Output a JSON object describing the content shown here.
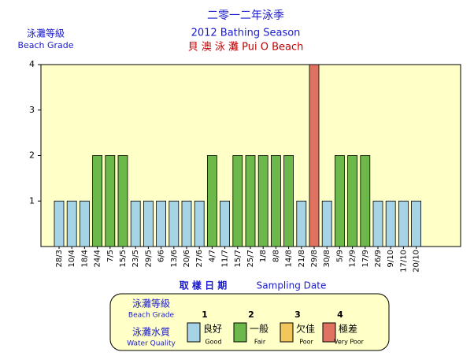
{
  "chart_data": {
    "type": "bar",
    "title": "二零一二年泳季",
    "subtitle": "2012 Bathing Season",
    "location": "貝 澳 泳 灘   Pui O Beach",
    "y_label": [
      "泳灘等級",
      "Beach Grade"
    ],
    "x_label": [
      "取 樣 日 期",
      "Sampling Date"
    ],
    "categories": [
      "28/3",
      "10/4",
      "18/4",
      "24/4",
      "7/5",
      "15/5",
      "23/5",
      "29/5",
      "6/6",
      "13/6",
      "20/6",
      "27/6",
      "4/7",
      "11/7",
      "15/7",
      "25/7",
      "1/8",
      "8/8",
      "14/8",
      "21/8",
      "29/8",
      "30/8",
      "5/9",
      "12/9",
      "17/9",
      "26/9",
      "9/10",
      "17/10",
      "20/10"
    ],
    "values": [
      1,
      1,
      1,
      2,
      2,
      2,
      1,
      1,
      1,
      1,
      1,
      1,
      2,
      1,
      2,
      2,
      2,
      2,
      2,
      1,
      4,
      1,
      2,
      2,
      2,
      1,
      1,
      1,
      1
    ],
    "ylim": [
      0,
      4
    ],
    "yticks": [
      1,
      2,
      3,
      4
    ],
    "plot_background": "#ffffc8",
    "legend": {
      "grade_title": [
        "泳灘等級",
        "Beach Grade"
      ],
      "quality_title": [
        "泳灘水質",
        "Water Quality"
      ],
      "items": [
        {
          "grade": 1,
          "zh": "良好",
          "en": "Good",
          "color": "#a6d4e6"
        },
        {
          "grade": 2,
          "zh": "一般",
          "en": "Fair",
          "color": "#6cb84a"
        },
        {
          "grade": 3,
          "zh": "欠佳",
          "en": "Poor",
          "color": "#f2c65a"
        },
        {
          "grade": 4,
          "zh": "極差",
          "en": "Very Poor",
          "color": "#e07262"
        }
      ]
    }
  }
}
